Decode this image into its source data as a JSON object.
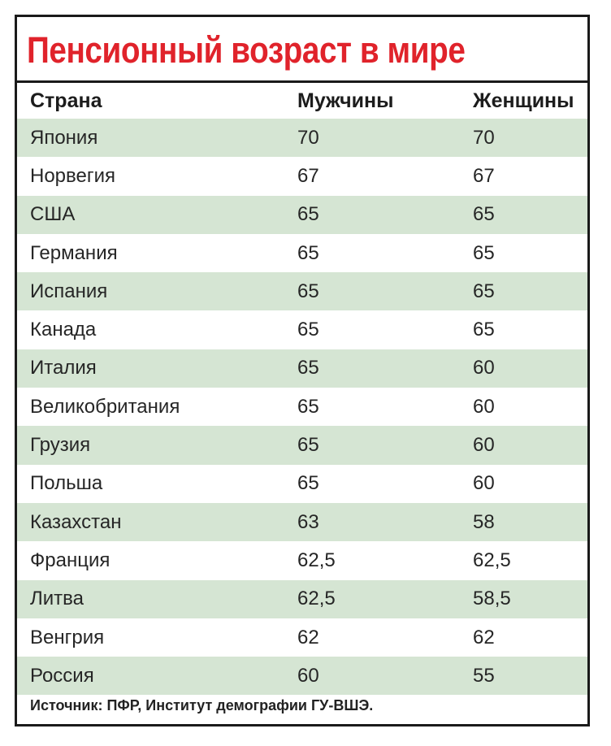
{
  "title": "Пенсионный возраст в мире",
  "columns": {
    "country": "Страна",
    "men": "Мужчины",
    "women": "Женщины"
  },
  "rows": [
    {
      "country": "Япония",
      "men": "70",
      "women": "70"
    },
    {
      "country": "Норвегия",
      "men": "67",
      "women": "67"
    },
    {
      "country": "США",
      "men": "65",
      "women": "65"
    },
    {
      "country": "Германия",
      "men": "65",
      "women": "65"
    },
    {
      "country": "Испания",
      "men": "65",
      "women": "65"
    },
    {
      "country": "Канада",
      "men": "65",
      "women": "65"
    },
    {
      "country": "Италия",
      "men": "65",
      "women": "60"
    },
    {
      "country": "Великобритания",
      "men": "65",
      "women": "60"
    },
    {
      "country": "Грузия",
      "men": "65",
      "women": "60"
    },
    {
      "country": "Польша",
      "men": "65",
      "women": "60"
    },
    {
      "country": "Казахстан",
      "men": "63",
      "women": "58"
    },
    {
      "country": "Франция",
      "men": "62,5",
      "women": "62,5"
    },
    {
      "country": "Литва",
      "men": "62,5",
      "women": "58,5"
    },
    {
      "country": "Венгрия",
      "men": "62",
      "women": "62"
    },
    {
      "country": "Россия",
      "men": "60",
      "women": "55"
    }
  ],
  "source": "Источник: ПФР, Институт демографии ГУ-ВШЭ.",
  "colors": {
    "title": "#e0232b",
    "shaded_row": "#d5e5d3",
    "border": "#1a1a1a"
  }
}
